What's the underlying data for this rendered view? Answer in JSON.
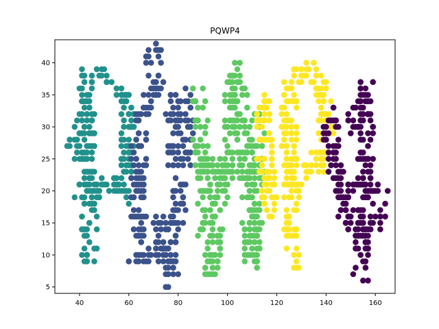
{
  "chart_data": {
    "type": "scatter",
    "title": "PQWP4",
    "xlabel": "",
    "ylabel": "",
    "xlim": [
      30,
      168
    ],
    "ylim": [
      4.0,
      43.6
    ],
    "xticks": [
      40,
      60,
      80,
      100,
      120,
      140,
      160
    ],
    "yticks": [
      5,
      10,
      15,
      20,
      25,
      30,
      35,
      40
    ],
    "grid": false,
    "legend": false,
    "series": [
      {
        "color": "#21918c",
        "strokes": [
          [
            [
              44,
              9
            ],
            [
              44,
              16
            ],
            [
              44,
              22
            ],
            [
              43,
              27
            ],
            [
              43,
              33
            ],
            [
              43,
              39
            ]
          ],
          [
            [
              37,
              25
            ],
            [
              39,
              28
            ],
            [
              41,
              30
            ],
            [
              44,
              32
            ]
          ],
          [
            [
              43,
              38
            ],
            [
              48,
              38
            ],
            [
              53,
              37
            ],
            [
              58,
              35
            ],
            [
              60,
              31
            ],
            [
              60,
              26
            ],
            [
              59,
              22
            ],
            [
              54,
              21
            ],
            [
              48,
              21
            ],
            [
              43,
              21
            ]
          ],
          [
            [
              39,
              20
            ],
            [
              45,
              20
            ],
            [
              51,
              20
            ],
            [
              56,
              20
            ],
            [
              59,
              19
            ]
          ]
        ],
        "point_count": 260
      },
      {
        "color": "#3b528b",
        "strokes": [
          [
            [
              63,
              10
            ],
            [
              64,
              16
            ],
            [
              64,
              22
            ],
            [
              64,
              28
            ],
            [
              66,
              33
            ],
            [
              69,
              36
            ],
            [
              74,
              37
            ],
            [
              77,
              35
            ],
            [
              79,
              31
            ],
            [
              79,
              26
            ],
            [
              80,
              21
            ],
            [
              80,
              16
            ],
            [
              79,
              12
            ],
            [
              74,
              10
            ],
            [
              68,
              10
            ],
            [
              63,
              11
            ]
          ],
          [
            [
              70,
              42
            ],
            [
              70,
              38
            ]
          ],
          [
            [
              72,
              16
            ],
            [
              74,
              12
            ],
            [
              76,
              9
            ],
            [
              78,
              6
            ]
          ],
          [
            [
              84,
              36
            ],
            [
              84,
              30
            ],
            [
              84,
              24
            ]
          ]
        ],
        "point_count": 290
      },
      {
        "color": "#5ec962",
        "strokes": [
          [
            [
              88,
              36
            ],
            [
              89,
              29
            ],
            [
              90,
              22
            ],
            [
              91,
              16
            ],
            [
              92,
              11
            ],
            [
              93,
              6
            ]
          ],
          [
            [
              93,
              7
            ],
            [
              95,
              14
            ],
            [
              97,
              20
            ],
            [
              99,
              23
            ]
          ],
          [
            [
              99,
              23
            ],
            [
              100,
              29
            ],
            [
              102,
              35
            ],
            [
              104,
              39
            ]
          ],
          [
            [
              104,
              39
            ],
            [
              106,
              31
            ],
            [
              108,
              23
            ],
            [
              109,
              16
            ],
            [
              110,
              9
            ]
          ],
          [
            [
              110,
              9
            ],
            [
              111,
              17
            ],
            [
              112,
              25
            ],
            [
              113,
              33
            ]
          ],
          [
            [
              90,
              23
            ],
            [
              96,
              24
            ],
            [
              102,
              24
            ],
            [
              108,
              23
            ]
          ]
        ],
        "point_count": 420
      },
      {
        "color": "#fde725",
        "strokes": [
          [
            [
              114,
              35
            ],
            [
              115,
              28
            ],
            [
              116,
              22
            ],
            [
              117,
              15
            ]
          ],
          [
            [
              126,
              8
            ],
            [
              126,
              14
            ],
            [
              126,
              20
            ],
            [
              125,
              26
            ],
            [
              125,
              32
            ],
            [
              126,
              37
            ],
            [
              130,
              39
            ],
            [
              135,
              39
            ],
            [
              139,
              36
            ],
            [
              140,
              31
            ],
            [
              139,
              26
            ],
            [
              135,
              24
            ],
            [
              129,
              24
            ],
            [
              125,
              23
            ]
          ],
          [
            [
              126,
              22
            ],
            [
              132,
              22
            ],
            [
              138,
              23
            ],
            [
              141,
              24
            ]
          ]
        ],
        "point_count": 310
      },
      {
        "color": "#440154",
        "strokes": [
          [
            [
              143,
              32
            ],
            [
              142,
              28
            ],
            [
              143,
              24
            ],
            [
              146,
              21
            ],
            [
              148,
              17
            ],
            [
              150,
              14
            ],
            [
              155,
              14
            ],
            [
              160,
              15
            ],
            [
              162,
              17
            ]
          ],
          [
            [
              149,
              29
            ],
            [
              152,
              31
            ],
            [
              155,
              33
            ],
            [
              157,
              36
            ]
          ],
          [
            [
              157,
              36
            ],
            [
              156,
              30
            ],
            [
              156,
              24
            ],
            [
              156,
              18
            ],
            [
              155,
              12
            ],
            [
              154,
              7
            ]
          ],
          [
            [
              147,
              20
            ],
            [
              153,
              20
            ],
            [
              158,
              20
            ],
            [
              162,
              19
            ]
          ]
        ],
        "point_count": 250
      }
    ]
  }
}
